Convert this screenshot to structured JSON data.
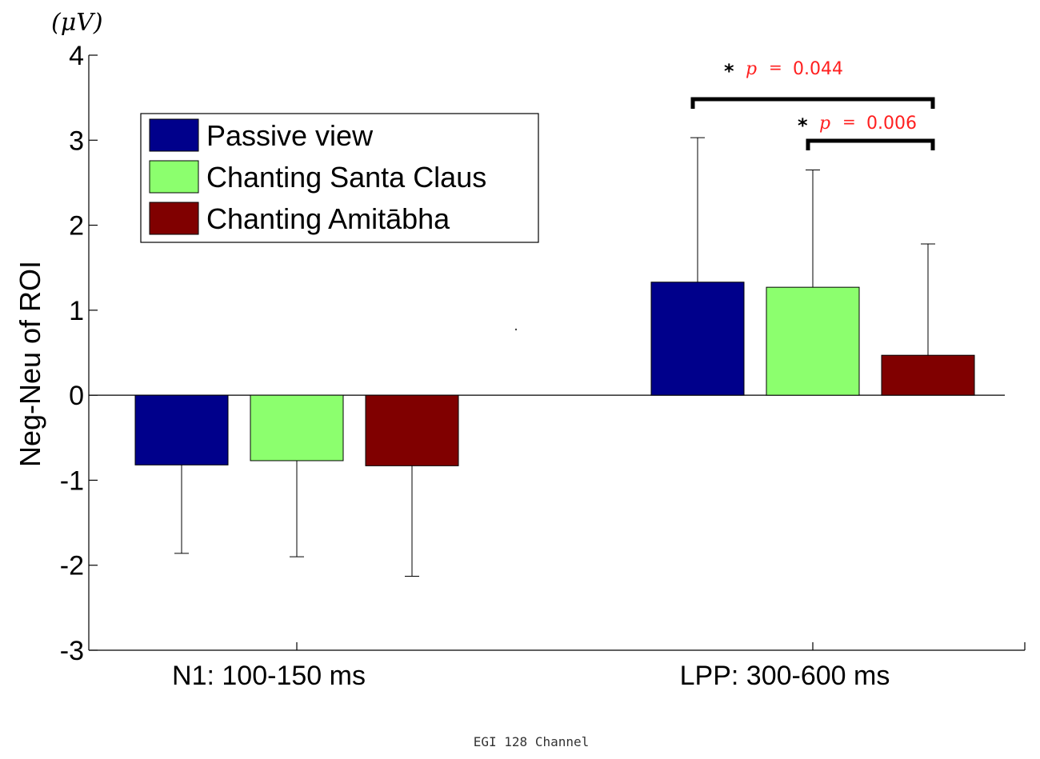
{
  "chart_data": {
    "type": "bar",
    "unit": "(μV)",
    "ylabel": "Neg-Neu of ROI",
    "ylim": [
      -3,
      4
    ],
    "yticks": [
      4,
      3,
      2,
      1,
      0,
      -1,
      -2,
      -3
    ],
    "ytick_labels": [
      "4",
      "3",
      "2",
      "1",
      "0",
      "-1",
      "-2",
      "-3"
    ],
    "categories": [
      "N1: 100-150 ms",
      "LPP: 300-600 ms"
    ],
    "series": [
      {
        "name": "Passive view",
        "color": "#00008b",
        "values": [
          -0.82,
          1.33
        ],
        "error_bars": [
          1.04,
          1.7
        ]
      },
      {
        "name": "Chanting Santa Claus",
        "color": "#8cff6e",
        "values": [
          -0.77,
          1.27
        ],
        "error_bars": [
          1.13,
          1.38
        ]
      },
      {
        "name": "Chanting Amitābha",
        "color": "#800000",
        "values": [
          -0.83,
          0.47
        ],
        "error_bars": [
          1.3,
          1.31
        ]
      }
    ],
    "legend_position": "upper-left",
    "significance": [
      {
        "star": "*",
        "p_symbol": "p",
        "equals": "=",
        "value": "0.044",
        "from_series": 0,
        "to_series": 2,
        "category": 1
      },
      {
        "star": "*",
        "p_symbol": "p",
        "equals": "=",
        "value": "0.006",
        "from_series": 1,
        "to_series": 2,
        "category": 1
      }
    ],
    "footer": "EGI 128 Channel"
  }
}
